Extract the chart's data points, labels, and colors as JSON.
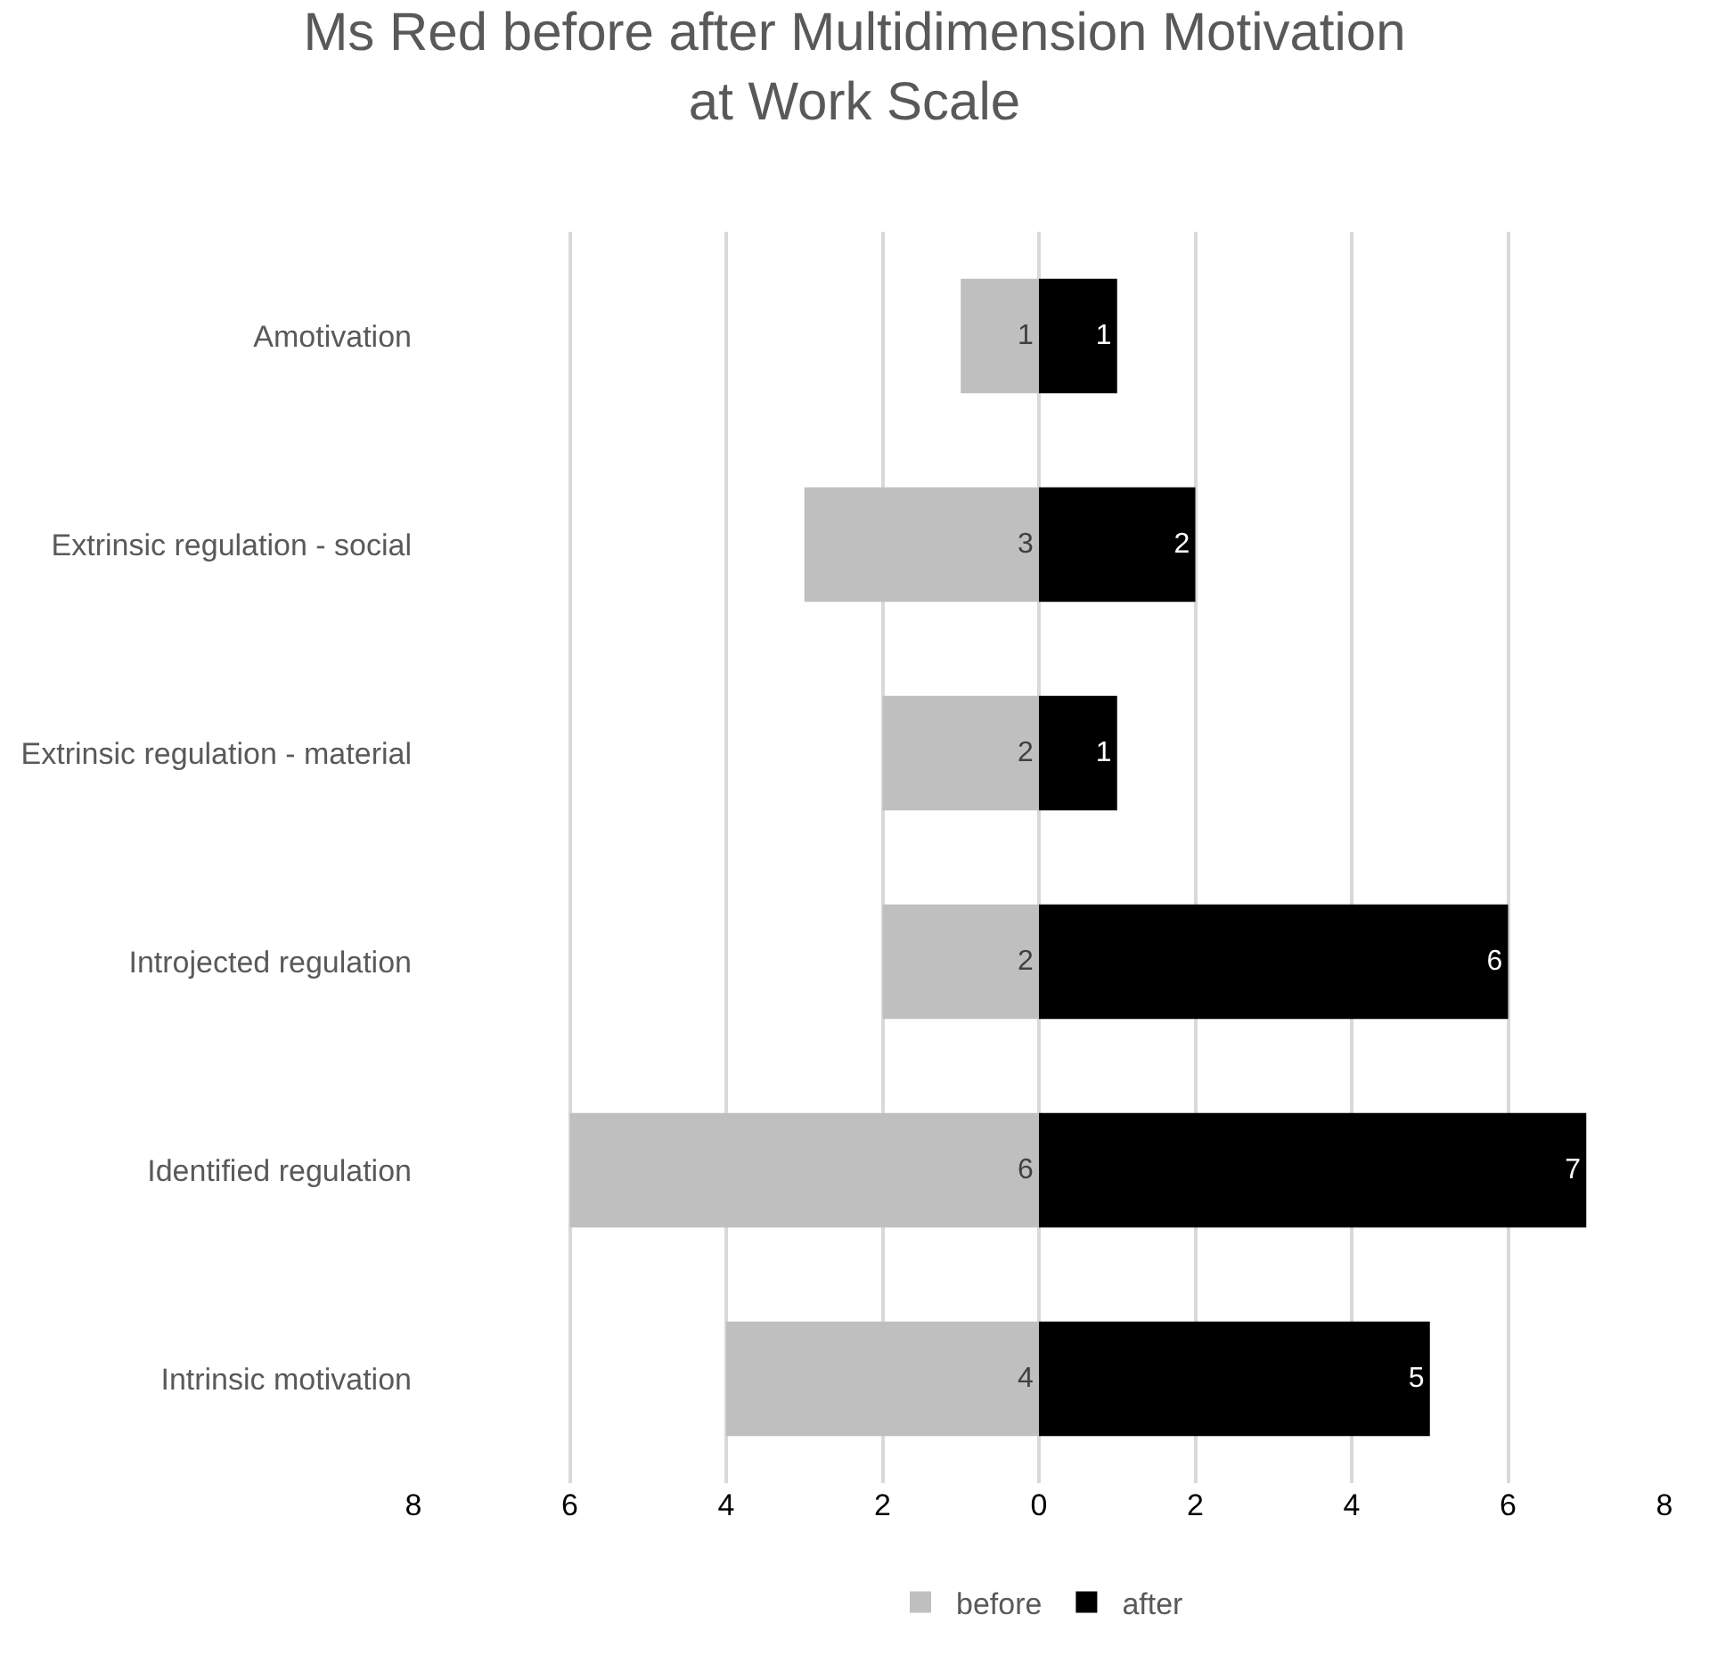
{
  "chart_data": {
    "type": "bar",
    "orientation": "horizontal",
    "title": "Ms Red before after Multidimension Motivation at Work Scale",
    "categories": [
      "Amotivation",
      "Extrinsic regulation - social",
      "Extrinsic regulation - material",
      "Introjected regulation",
      "Identified regulation",
      "Intrinsic motivation"
    ],
    "series": [
      {
        "name": "before",
        "color": "#bfbfbf",
        "values": [
          1,
          3,
          2,
          2,
          6,
          4
        ],
        "base": [
          -1,
          -3,
          -2,
          -2,
          -6,
          -4
        ],
        "value_labels": [
          "1",
          "3",
          "2",
          "2",
          "6",
          "4"
        ]
      },
      {
        "name": "after",
        "color": "#000000",
        "values": [
          1,
          2,
          1,
          6,
          7,
          5
        ],
        "value_labels": [
          "1",
          "2",
          "1",
          "6",
          "7",
          "5"
        ]
      }
    ],
    "xlim": [
      -8,
      8
    ],
    "xticks": [
      {
        "value": -8,
        "label": "8"
      },
      {
        "value": -6,
        "label": "6"
      },
      {
        "value": -4,
        "label": "4"
      },
      {
        "value": -2,
        "label": "2"
      },
      0,
      2,
      4,
      6,
      8
    ],
    "grid": "x",
    "legend": "bottom"
  }
}
